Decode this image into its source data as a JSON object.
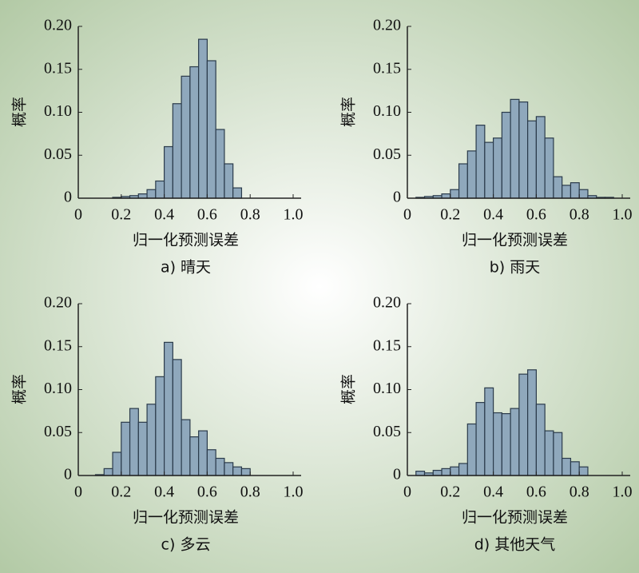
{
  "chart_data": [
    {
      "type": "histogram",
      "title": "a) 晴天",
      "xlabel": "归一化预测误差",
      "ylabel": "概率",
      "color": "#8fa8bc",
      "bins": [
        0,
        0.04,
        0.08,
        0.12,
        0.16,
        0.2,
        0.24,
        0.28,
        0.32,
        0.36,
        0.4,
        0.44,
        0.48,
        0.52,
        0.56,
        0.6,
        0.64,
        0.68,
        0.72,
        0.76,
        0.8,
        0.84,
        0.88,
        0.92,
        0.96,
        1
      ],
      "values": [
        0,
        0,
        0,
        0,
        0.001,
        0.002,
        0.003,
        0.005,
        0.01,
        0.02,
        0.06,
        0.11,
        0.142,
        0.153,
        0.185,
        0.16,
        0.08,
        0.04,
        0.012,
        0,
        0,
        0,
        0,
        0,
        0
      ],
      "xlim": [
        0,
        1
      ],
      "ylim": [
        0,
        0.2
      ],
      "xticks": [
        0,
        0.2,
        0.4,
        0.6,
        0.8,
        {
          "value": 1,
          "label": "1.0"
        }
      ],
      "yticks": [
        0,
        0.05,
        {
          "value": 0.1,
          "label": "0.10"
        },
        0.15,
        {
          "value": 0.2,
          "label": "0.20"
        }
      ]
    },
    {
      "type": "histogram",
      "title": "b) 雨天",
      "xlabel": "归一化预测误差",
      "ylabel": "概率",
      "color": "#8fa8bc",
      "bins": [
        0,
        0.04,
        0.08,
        0.12,
        0.16,
        0.2,
        0.24,
        0.28,
        0.32,
        0.36,
        0.4,
        0.44,
        0.48,
        0.52,
        0.56,
        0.6,
        0.64,
        0.68,
        0.72,
        0.76,
        0.8,
        0.84,
        0.88,
        0.92,
        0.96,
        1
      ],
      "values": [
        0,
        0.001,
        0.002,
        0.003,
        0.005,
        0.01,
        0.04,
        0.055,
        0.085,
        0.065,
        0.07,
        0.1,
        0.115,
        0.112,
        0.09,
        0.095,
        0.07,
        0.025,
        0.015,
        0.018,
        0.01,
        0.003,
        0.001,
        0.001,
        0
      ],
      "xlim": [
        0,
        1
      ],
      "ylim": [
        0,
        0.2
      ],
      "xticks": [
        0,
        0.2,
        0.4,
        0.6,
        0.8,
        {
          "value": 1,
          "label": "1.0"
        }
      ],
      "yticks": [
        0,
        0.05,
        {
          "value": 0.1,
          "label": "0.10"
        },
        0.15,
        {
          "value": 0.2,
          "label": "0.20"
        }
      ]
    },
    {
      "type": "histogram",
      "title": "c) 多云",
      "xlabel": "归一化预测误差",
      "ylabel": "概率",
      "color": "#8fa8bc",
      "bins": [
        0,
        0.04,
        0.08,
        0.12,
        0.16,
        0.2,
        0.24,
        0.28,
        0.32,
        0.36,
        0.4,
        0.44,
        0.48,
        0.52,
        0.56,
        0.6,
        0.64,
        0.68,
        0.72,
        0.76,
        0.8,
        0.84,
        0.88,
        0.92,
        0.96,
        1
      ],
      "values": [
        0,
        0,
        0.001,
        0.008,
        0.027,
        0.062,
        0.078,
        0.062,
        0.083,
        0.115,
        0.155,
        0.135,
        0.065,
        0.045,
        0.052,
        0.03,
        0.02,
        0.015,
        0.01,
        0.008,
        0,
        0,
        0,
        0,
        0
      ],
      "xlim": [
        0,
        1
      ],
      "ylim": [
        0,
        0.2
      ],
      "xticks": [
        0,
        0.2,
        0.4,
        0.6,
        0.8,
        {
          "value": 1,
          "label": "1.0"
        }
      ],
      "yticks": [
        0,
        0.05,
        {
          "value": 0.1,
          "label": "0.10"
        },
        0.15,
        {
          "value": 0.2,
          "label": "0.20"
        }
      ]
    },
    {
      "type": "histogram",
      "title": "d) 其他天气",
      "xlabel": "归一化预测误差",
      "ylabel": "概率",
      "color": "#8fa8bc",
      "bins": [
        0,
        0.04,
        0.08,
        0.12,
        0.16,
        0.2,
        0.24,
        0.28,
        0.32,
        0.36,
        0.4,
        0.44,
        0.48,
        0.52,
        0.56,
        0.6,
        0.64,
        0.68,
        0.72,
        0.76,
        0.8,
        0.84,
        0.88,
        0.92,
        0.96,
        1
      ],
      "values": [
        0,
        0.005,
        0.003,
        0.006,
        0.008,
        0.01,
        0.014,
        0.06,
        0.085,
        0.102,
        0.073,
        0.072,
        0.078,
        0.118,
        0.123,
        0.083,
        0.052,
        0.05,
        0.02,
        0.016,
        0.01,
        0,
        0,
        0,
        0
      ],
      "xlim": [
        0,
        1
      ],
      "ylim": [
        0,
        0.2
      ],
      "xticks": [
        0,
        0.2,
        0.4,
        0.6,
        0.8,
        {
          "value": 1,
          "label": "1.0"
        }
      ],
      "yticks": [
        0,
        0.05,
        {
          "value": 0.1,
          "label": "0.10"
        },
        0.15,
        {
          "value": 0.2,
          "label": "0.20"
        }
      ]
    }
  ]
}
